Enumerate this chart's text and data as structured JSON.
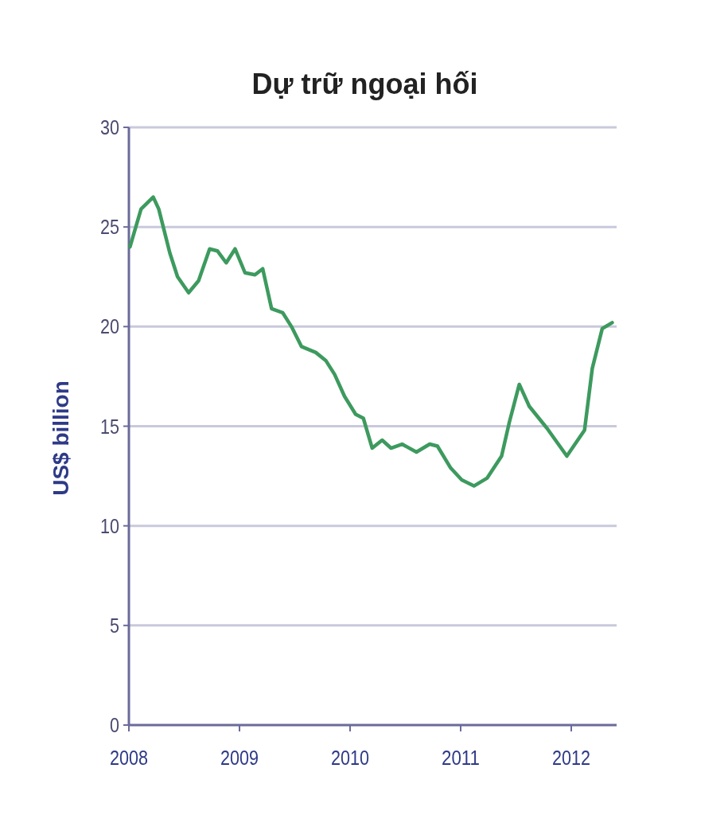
{
  "chart_data": {
    "type": "line",
    "title": "Dự trữ ngoại hối",
    "ylabel": "US$ billion",
    "xlim": [
      2008,
      2012.41
    ],
    "xticks": [
      2008,
      2009,
      2010,
      2011,
      2012
    ],
    "ylim": [
      0,
      30
    ],
    "yticks": [
      0,
      5,
      10,
      15,
      20,
      25,
      30
    ],
    "grid": "y",
    "series": [
      {
        "color": "#3d9a5e",
        "x": [
          2008.01,
          2008.11,
          2008.22,
          2008.27,
          2008.37,
          2008.44,
          2008.54,
          2008.63,
          2008.73,
          2008.8,
          2008.88,
          2008.96,
          2009.05,
          2009.14,
          2009.21,
          2009.29,
          2009.39,
          2009.47,
          2009.56,
          2009.69,
          2009.78,
          2009.86,
          2009.95,
          2010.05,
          2010.12,
          2010.2,
          2010.29,
          2010.37,
          2010.47,
          2010.6,
          2010.72,
          2010.79,
          2010.91,
          2011.01,
          2011.12,
          2011.24,
          2011.37,
          2011.44,
          2011.53,
          2011.62,
          2011.78,
          2011.96,
          2012.12,
          2012.19,
          2012.28,
          2012.37
        ],
        "values": [
          24.0,
          25.9,
          26.5,
          25.9,
          23.7,
          22.5,
          21.7,
          22.3,
          23.9,
          23.8,
          23.2,
          23.9,
          22.7,
          22.6,
          22.9,
          20.9,
          20.7,
          20.0,
          19.0,
          18.7,
          18.3,
          17.6,
          16.5,
          15.6,
          15.4,
          13.9,
          14.3,
          13.9,
          14.1,
          13.7,
          14.1,
          14.0,
          12.9,
          12.3,
          12.0,
          12.4,
          13.5,
          15.2,
          17.1,
          16.0,
          14.9,
          13.5,
          14.8,
          17.9,
          19.9,
          20.2
        ]
      }
    ]
  }
}
